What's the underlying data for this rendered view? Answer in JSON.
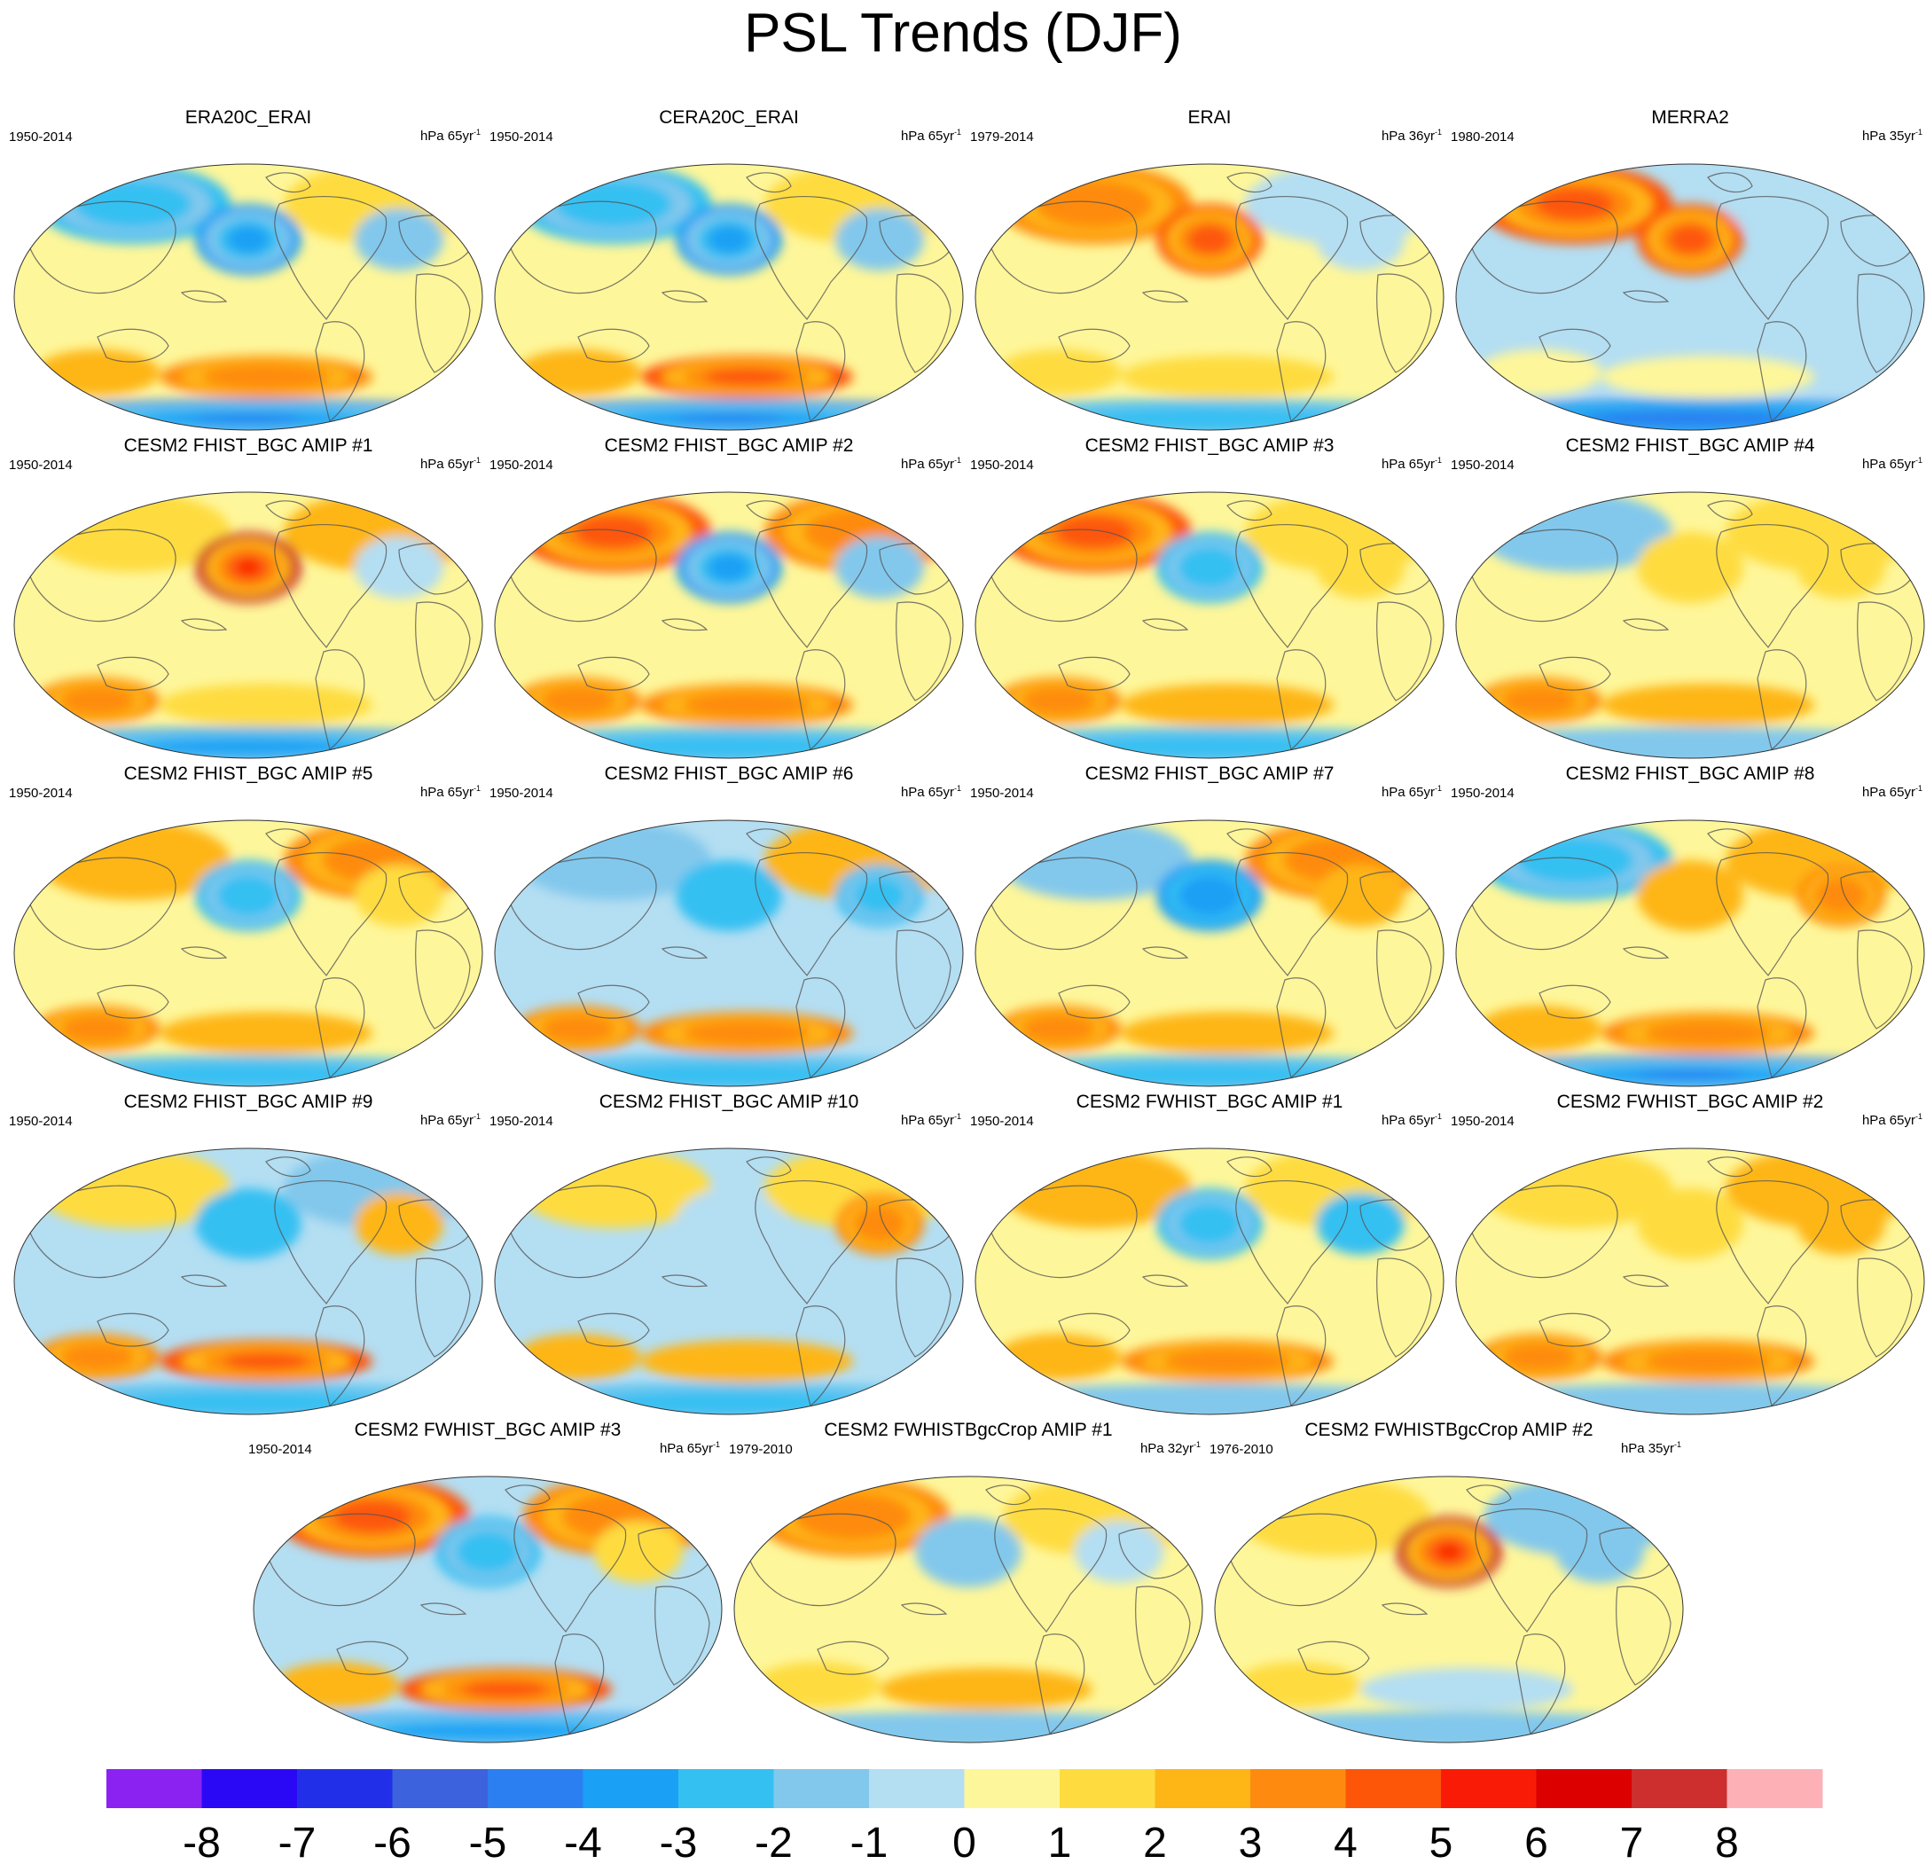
{
  "title": "PSL Trends (DJF)",
  "chart_data": {
    "type": "heatmap",
    "title": "PSL Trends (DJF)",
    "projection": "Robinson (Pacific-centered)",
    "variable": "Sea level pressure trend",
    "colorbar": {
      "ticks": [
        "-8",
        "-7",
        "-6",
        "-5",
        "-4",
        "-3",
        "-2",
        "-1",
        "0",
        "1",
        "2",
        "3",
        "4",
        "5",
        "6",
        "7",
        "8"
      ],
      "colors": [
        "#8c22f2",
        "#2a08f5",
        "#2130e8",
        "#3c62dd",
        "#2b7ff0",
        "#1aa0f5",
        "#35c0f2",
        "#82c8ec",
        "#b4def2",
        "#fef69a",
        "#fedc3f",
        "#feb617",
        "#fe8b0f",
        "#fd5608",
        "#fa1b06",
        "#dc0000",
        "#cd2e2e",
        "#fdb1b6"
      ]
    },
    "panels": [
      {
        "title": "ERA20C_ERAI",
        "years": "1950-2014",
        "units": "hPa 65yr",
        "sup": "-1",
        "pattern": {
          "nh": [
            -3,
            1.5
          ],
          "npac": -4,
          "natl": -1.5,
          "trop": 0.5,
          "sh": [
            2.5,
            3.5
          ],
          "ant": -5
        }
      },
      {
        "title": "CERA20C_ERAI",
        "years": "1950-2014",
        "units": "hPa 65yr",
        "sup": "-1",
        "pattern": {
          "nh": [
            -3,
            1.5
          ],
          "npac": -4,
          "natl": -1.5,
          "trop": 0.5,
          "sh": [
            2.5,
            4
          ],
          "ant": -5
        }
      },
      {
        "title": "ERAI",
        "years": "1979-2014",
        "units": "hPa 36yr",
        "sup": "-1",
        "pattern": {
          "nh": [
            3.5,
            -0.5
          ],
          "npac": 4,
          "natl": -1,
          "trop": 0.5,
          "sh": [
            1,
            1.5
          ],
          "ant": -3
        }
      },
      {
        "title": "MERRA2",
        "years": "1980-2014",
        "units": "hPa 35yr",
        "sup": "-1",
        "pattern": {
          "nh": [
            4,
            -0.5
          ],
          "npac": 4.5,
          "natl": -1,
          "trop": -0.5,
          "sh": [
            0.5,
            0.5
          ],
          "ant": -4.5
        }
      },
      {
        "title": "CESM2 FHIST_BGC AMIP #1",
        "years": "1950-2014",
        "units": "hPa 65yr",
        "sup": "-1",
        "pattern": {
          "nh": [
            1.5,
            2.5
          ],
          "npac": 7,
          "natl": -1,
          "trop": 0.5,
          "sh": [
            3.5,
            1.5
          ],
          "ant": -4
        }
      },
      {
        "title": "CESM2 FHIST_BGC AMIP #2",
        "years": "1950-2014",
        "units": "hPa 65yr",
        "sup": "-1",
        "pattern": {
          "nh": [
            4,
            3
          ],
          "npac": -4,
          "natl": -2,
          "trop": 0.5,
          "sh": [
            3,
            3
          ],
          "ant": -3
        }
      },
      {
        "title": "CESM2 FHIST_BGC AMIP #3",
        "years": "1950-2014",
        "units": "hPa 65yr",
        "sup": "-1",
        "pattern": {
          "nh": [
            4,
            1.5
          ],
          "npac": -3,
          "natl": 1.5,
          "trop": 0.5,
          "sh": [
            3.5,
            2.5
          ],
          "ant": -3
        }
      },
      {
        "title": "CESM2 FHIST_BGC AMIP #4",
        "years": "1950-2014",
        "units": "hPa 65yr",
        "sup": "-1",
        "pattern": {
          "nh": [
            -2,
            1.5
          ],
          "npac": 1,
          "natl": 1,
          "trop": 0.5,
          "sh": [
            3,
            2
          ],
          "ant": -2
        }
      },
      {
        "title": "CESM2 FHIST_BGC AMIP #5",
        "years": "1950-2014",
        "units": "hPa 65yr",
        "sup": "-1",
        "pattern": {
          "nh": [
            2,
            3
          ],
          "npac": -3,
          "natl": 1,
          "trop": 0.5,
          "sh": [
            3.5,
            2.5
          ],
          "ant": -3
        }
      },
      {
        "title": "CESM2 FHIST_BGC AMIP #6",
        "years": "1950-2014",
        "units": "hPa 65yr",
        "sup": "-1",
        "pattern": {
          "nh": [
            -2,
            2.5
          ],
          "npac": -2.5,
          "natl": -3,
          "trop": -0.5,
          "sh": [
            3.5,
            3.5
          ],
          "ant": -3
        }
      },
      {
        "title": "CESM2 FHIST_BGC AMIP #7",
        "years": "1950-2014",
        "units": "hPa 65yr",
        "sup": "-1",
        "pattern": {
          "nh": [
            -2,
            3
          ],
          "npac": -3.5,
          "natl": 2.5,
          "trop": 0.5,
          "sh": [
            3,
            2.5
          ],
          "ant": -3
        }
      },
      {
        "title": "CESM2 FHIST_BGC AMIP #8",
        "years": "1950-2014",
        "units": "hPa 65yr",
        "sup": "-1",
        "pattern": {
          "nh": [
            -3,
            2
          ],
          "npac": 2,
          "natl": 3,
          "trop": 0.5,
          "sh": [
            2.5,
            3.5
          ],
          "ant": -5
        }
      },
      {
        "title": "CESM2 FHIST_BGC AMIP #9",
        "years": "1950-2014",
        "units": "hPa 65yr",
        "sup": "-1",
        "pattern": {
          "nh": [
            1.5,
            -1.5
          ],
          "npac": -2.5,
          "natl": 2.5,
          "trop": -0.5,
          "sh": [
            3.5,
            4
          ],
          "ant": -3
        }
      },
      {
        "title": "CESM2 FHIST_BGC AMIP #10",
        "years": "1950-2014",
        "units": "hPa 65yr",
        "sup": "-1",
        "pattern": {
          "nh": [
            1.5,
            1.5
          ],
          "npac": -1,
          "natl": 3.5,
          "trop": -0.5,
          "sh": [
            2,
            2.5
          ],
          "ant": -3
        }
      },
      {
        "title": "CESM2 FWHIST_BGC AMIP #1",
        "years": "1950-2014",
        "units": "hPa 65yr",
        "sup": "-1",
        "pattern": {
          "nh": [
            2,
            1.5
          ],
          "npac": -3,
          "natl": -2.5,
          "trop": 0.5,
          "sh": [
            2.5,
            3
          ],
          "ant": -2
        }
      },
      {
        "title": "CESM2 FWHIST_BGC AMIP #2",
        "years": "1950-2014",
        "units": "hPa 65yr",
        "sup": "-1",
        "pattern": {
          "nh": [
            1.5,
            2.5
          ],
          "npac": 1,
          "natl": 2,
          "trop": 0.5,
          "sh": [
            3,
            3
          ],
          "ant": -2
        }
      },
      {
        "title": "CESM2 FWHIST_BGC AMIP #3",
        "years": "1950-2014",
        "units": "hPa 65yr",
        "sup": "-1",
        "pattern": {
          "nh": [
            4,
            3
          ],
          "npac": -3,
          "natl": 1.5,
          "trop": -0.5,
          "sh": [
            2.5,
            4.5
          ],
          "ant": -4
        }
      },
      {
        "title": "CESM2 FWHISTBgcCrop AMIP #1",
        "years": "1979-2010",
        "units": "hPa 32yr",
        "sup": "-1",
        "pattern": {
          "nh": [
            3.5,
            1
          ],
          "npac": -1.5,
          "natl": -1,
          "trop": 0.5,
          "sh": [
            1.5,
            2.5
          ],
          "ant": -2
        }
      },
      {
        "title": "CESM2 FWHISTBgcCrop AMIP #2",
        "years": "1976-2010",
        "units": "hPa 35yr",
        "sup": "-1",
        "pattern": {
          "nh": [
            1,
            -2
          ],
          "npac": 7,
          "natl": -1.5,
          "trop": 0.5,
          "sh": [
            1.5,
            -1
          ],
          "ant": -2
        }
      }
    ]
  }
}
